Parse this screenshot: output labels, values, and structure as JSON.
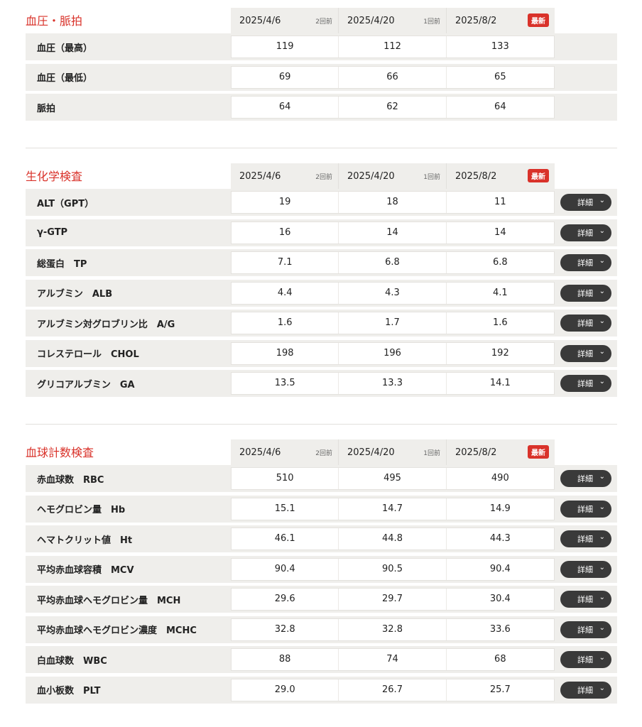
{
  "detail_label": "詳細",
  "accent": "#d9322a",
  "sections": [
    {
      "title": "血圧・脈拍",
      "has_detail": false,
      "dates": [
        {
          "date": "2025/4/6",
          "tag": "2回前"
        },
        {
          "date": "2025/4/20",
          "tag": "1回前"
        },
        {
          "date": "2025/8/2",
          "badge": "最新"
        }
      ],
      "rows": [
        {
          "label": "血圧（最高）",
          "values": [
            "119",
            "112",
            "133"
          ]
        },
        {
          "label": "血圧（最低）",
          "values": [
            "69",
            "66",
            "65"
          ]
        },
        {
          "label": "脈拍",
          "values": [
            "64",
            "62",
            "64"
          ]
        }
      ]
    },
    {
      "title": "生化学検査",
      "has_detail": true,
      "dates": [
        {
          "date": "2025/4/6",
          "tag": "2回前"
        },
        {
          "date": "2025/4/20",
          "tag": "1回前"
        },
        {
          "date": "2025/8/2",
          "badge": "最新"
        }
      ],
      "rows": [
        {
          "label": "ALT（GPT）",
          "values": [
            "19",
            "18",
            "11"
          ]
        },
        {
          "label": "γ-GTP",
          "values": [
            "16",
            "14",
            "14"
          ]
        },
        {
          "label": "総蛋白　TP",
          "values": [
            "7.1",
            "6.8",
            "6.8"
          ]
        },
        {
          "label": "アルブミン　ALB",
          "values": [
            "4.4",
            "4.3",
            "4.1"
          ]
        },
        {
          "label": "アルブミン対グロブリン比　A/G",
          "values": [
            "1.6",
            "1.7",
            "1.6"
          ]
        },
        {
          "label": "コレステロール　CHOL",
          "values": [
            "198",
            "196",
            "192"
          ]
        },
        {
          "label": "グリコアルブミン　GA",
          "values": [
            "13.5",
            "13.3",
            "14.1"
          ]
        }
      ]
    },
    {
      "title": "血球計数検査",
      "has_detail": true,
      "dates": [
        {
          "date": "2025/4/6",
          "tag": "2回前"
        },
        {
          "date": "2025/4/20",
          "tag": "1回前"
        },
        {
          "date": "2025/8/2",
          "badge": "最新"
        }
      ],
      "rows": [
        {
          "label": "赤血球数　RBC",
          "values": [
            "510",
            "495",
            "490"
          ]
        },
        {
          "label": "ヘモグロビン量　Hb",
          "values": [
            "15.1",
            "14.7",
            "14.9"
          ]
        },
        {
          "label": "ヘマトクリット値　Ht",
          "values": [
            "46.1",
            "44.8",
            "44.3"
          ]
        },
        {
          "label": "平均赤血球容積　MCV",
          "values": [
            "90.4",
            "90.5",
            "90.4"
          ]
        },
        {
          "label": "平均赤血球ヘモグロビン量　MCH",
          "values": [
            "29.6",
            "29.7",
            "30.4"
          ]
        },
        {
          "label": "平均赤血球ヘモグロビン濃度　MCHC",
          "values": [
            "32.8",
            "32.8",
            "33.6"
          ]
        },
        {
          "label": "白血球数　WBC",
          "values": [
            "88",
            "74",
            "68"
          ]
        },
        {
          "label": "血小板数　PLT",
          "values": [
            "29.0",
            "26.7",
            "25.7"
          ]
        }
      ]
    }
  ]
}
